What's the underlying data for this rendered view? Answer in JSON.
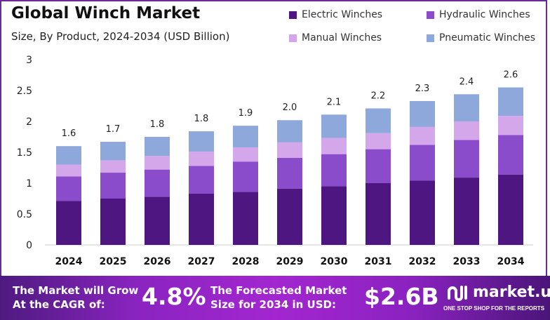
{
  "chart_data": {
    "type": "bar",
    "stacked": true,
    "title": "Global Winch Market",
    "subtitle": "Size, By Product, 2024-2034 (USD Billion)",
    "categories": [
      "2024",
      "2025",
      "2026",
      "2027",
      "2028",
      "2029",
      "2030",
      "2031",
      "2032",
      "2033",
      "2034"
    ],
    "series": [
      {
        "name": "Electric Winches",
        "color": "#4e1680",
        "values": [
          0.71,
          0.75,
          0.78,
          0.83,
          0.86,
          0.91,
          0.95,
          1.0,
          1.04,
          1.09,
          1.14
        ]
      },
      {
        "name": "Hydraulic Winches",
        "color": "#8b4ccc",
        "values": [
          0.4,
          0.42,
          0.44,
          0.45,
          0.49,
          0.5,
          0.52,
          0.55,
          0.58,
          0.61,
          0.64
        ]
      },
      {
        "name": "Manual Winches",
        "color": "#d4a6ea",
        "values": [
          0.19,
          0.2,
          0.22,
          0.23,
          0.23,
          0.25,
          0.26,
          0.26,
          0.29,
          0.3,
          0.31
        ]
      },
      {
        "name": "Pneumatic Winches",
        "color": "#8fa8dc",
        "values": [
          0.3,
          0.3,
          0.31,
          0.33,
          0.35,
          0.36,
          0.38,
          0.4,
          0.42,
          0.44,
          0.46
        ]
      }
    ],
    "totals_labels": [
      "1.6",
      "1.7",
      "1.8",
      "1.8",
      "1.9",
      "2.0",
      "2.1",
      "2.2",
      "2.3",
      "2.4",
      "2.6"
    ],
    "yticks": [
      "0",
      "0.5",
      "1",
      "1.5",
      "2",
      "2.5",
      "3"
    ],
    "ylim": [
      0,
      3
    ],
    "grid": false,
    "legend": "top-right"
  },
  "banner": {
    "cagr_text_1": "The Market will Grow",
    "cagr_text_2": "At the CAGR of:",
    "cagr_value": "4.8%",
    "forecast_text_1": "The Forecasted Market",
    "forecast_text_2": "Size for 2034 in USD:",
    "forecast_value": "$2.6B",
    "logo_name": "market.us",
    "logo_tagline": "ONE STOP SHOP FOR THE REPORTS"
  }
}
